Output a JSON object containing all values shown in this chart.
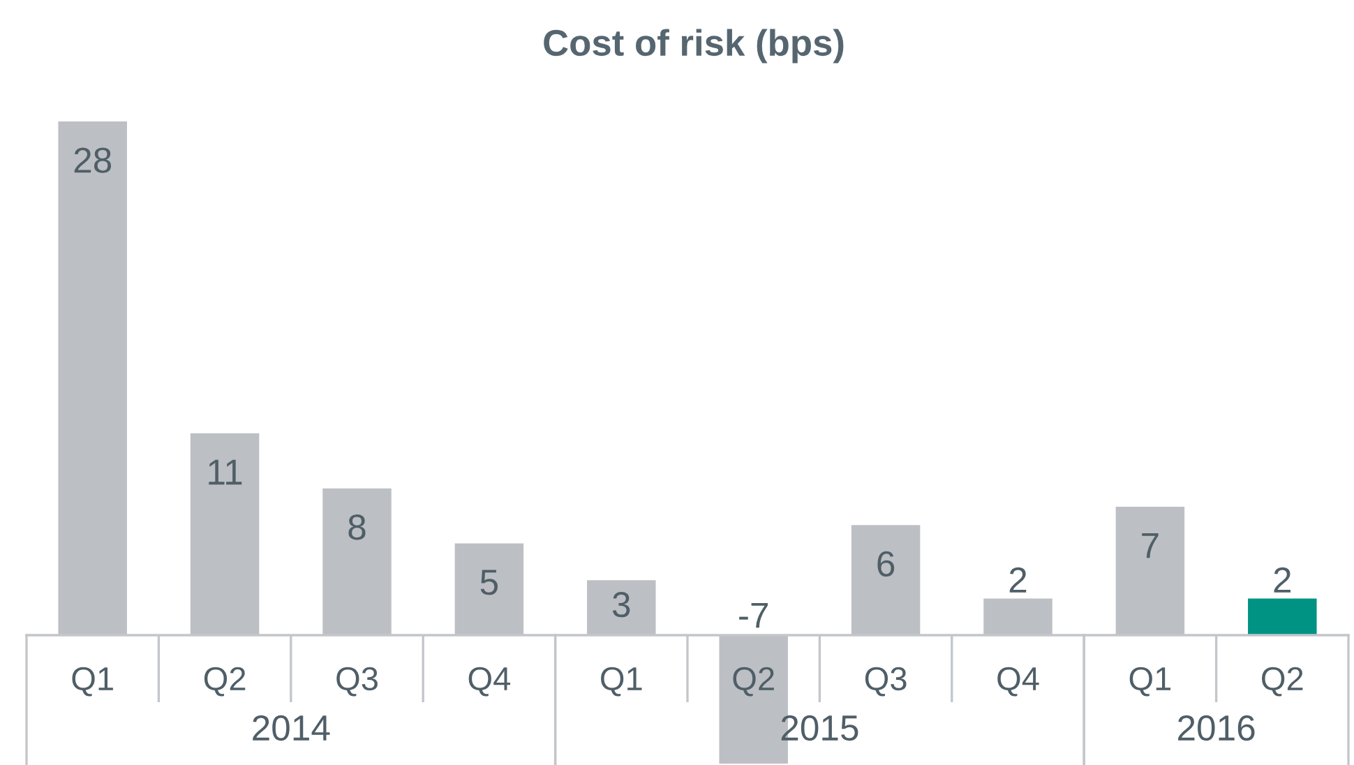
{
  "chart_data": [
    {
      "type": "bar",
      "title": "Cost of risk (bps)",
      "categories": [
        "Q1",
        "Q2",
        "Q3",
        "Q4"
      ],
      "values": [
        28,
        11,
        8,
        5
      ],
      "colors": [
        "#bcbfc3",
        "#bcbfc3",
        "#bcbfc3",
        "#bcbfc3"
      ],
      "xlabel": "2014",
      "data_labels": true
    },
    {
      "type": "bar",
      "categories": [
        "Q1",
        "Q2",
        "Q3",
        "Q4"
      ],
      "values": [
        3,
        -7,
        6,
        2
      ],
      "colors": [
        "#bcbfc3",
        "#bcbfc3",
        "#bcbfc3",
        "#bcbfc3"
      ],
      "xlabel": "2015",
      "data_labels": true
    },
    {
      "type": "bar",
      "categories": [
        "Q1",
        "Q2"
      ],
      "values": [
        7,
        2
      ],
      "colors": [
        "#bcbfc3",
        "#009384"
      ],
      "xlabel": "2016",
      "data_labels": true
    }
  ]
}
